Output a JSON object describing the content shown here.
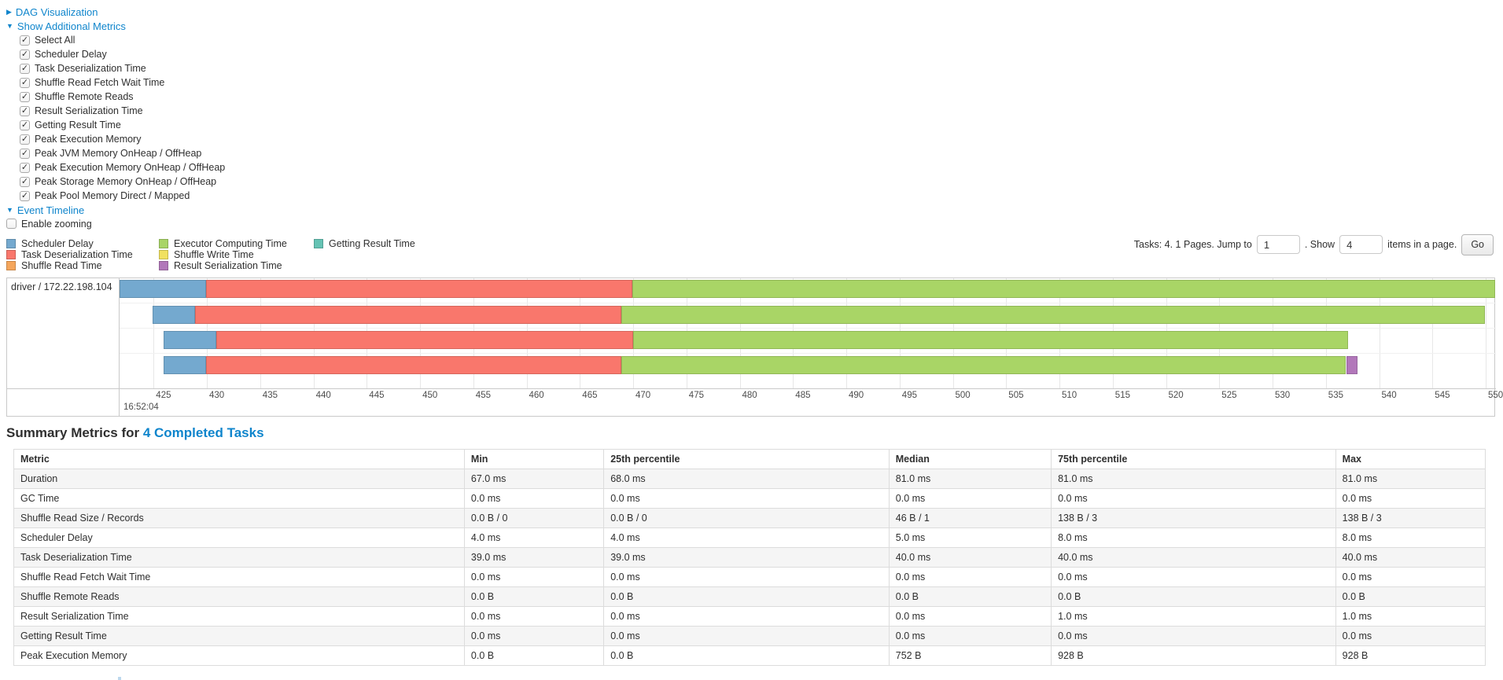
{
  "controls": {
    "dag": {
      "label": "DAG Visualization",
      "arrow": "▶"
    },
    "metrics_toggle": {
      "label": "Show Additional Metrics",
      "arrow": "▼"
    },
    "checkboxes": [
      {
        "label": "Select All",
        "checked": true
      },
      {
        "label": "Scheduler Delay",
        "checked": true
      },
      {
        "label": "Task Deserialization Time",
        "checked": true
      },
      {
        "label": "Shuffle Read Fetch Wait Time",
        "checked": true
      },
      {
        "label": "Shuffle Remote Reads",
        "checked": true
      },
      {
        "label": "Result Serialization Time",
        "checked": true
      },
      {
        "label": "Getting Result Time",
        "checked": true
      },
      {
        "label": "Peak Execution Memory",
        "checked": true
      },
      {
        "label": "Peak JVM Memory OnHeap / OffHeap",
        "checked": true
      },
      {
        "label": "Peak Execution Memory OnHeap / OffHeap",
        "checked": true
      },
      {
        "label": "Peak Storage Memory OnHeap / OffHeap",
        "checked": true
      },
      {
        "label": "Peak Pool Memory Direct / Mapped",
        "checked": true
      }
    ],
    "event_timeline": {
      "label": "Event Timeline",
      "arrow": "▼"
    },
    "enable_zooming": {
      "label": "Enable zooming",
      "checked": false
    }
  },
  "legend": {
    "columns": [
      [
        {
          "label": "Scheduler Delay",
          "color": "#74A9CF"
        },
        {
          "label": "Task Deserialization Time",
          "color": "#F9776C"
        },
        {
          "label": "Shuffle Read Time",
          "color": "#F5A65B"
        }
      ],
      [
        {
          "label": "Executor Computing Time",
          "color": "#A9D566"
        },
        {
          "label": "Shuffle Write Time",
          "color": "#F1E15F"
        },
        {
          "label": "Result Serialization Time",
          "color": "#B277BA"
        }
      ],
      [
        {
          "label": "Getting Result Time",
          "color": "#65C3B4"
        }
      ]
    ]
  },
  "pagination": {
    "prefix": "Tasks: 4. 1 Pages. Jump to",
    "jump_value": "1",
    "mid": ". Show",
    "show_value": "4",
    "suffix": "items in a page.",
    "go_label": "Go"
  },
  "chart_data": {
    "type": "timeline-gantt",
    "group_label": "driver / 172.22.198.104",
    "axis": {
      "tick_min": 425,
      "tick_max": 550,
      "tick_step": 5,
      "domain_min": 421.8,
      "domain_max": 551.0,
      "major_label": "16:52:04",
      "grid": true
    },
    "segment_colors": {
      "scheduler_delay": "#74A9CF",
      "task_deserialization": "#F9776C",
      "shuffle_read": "#F5A65B",
      "executor_computing": "#A9D566",
      "shuffle_write": "#F1E15F",
      "result_serialization": "#B277BA",
      "getting_result": "#65C3B4"
    },
    "tasks": [
      {
        "segments": [
          {
            "type": "scheduler_delay",
            "start": 421.8,
            "end": 429.9
          },
          {
            "type": "task_deserialization",
            "start": 429.9,
            "end": 469.9
          },
          {
            "type": "executor_computing",
            "start": 469.9,
            "end": 551.0
          }
        ]
      },
      {
        "segments": [
          {
            "type": "scheduler_delay",
            "start": 424.9,
            "end": 428.9
          },
          {
            "type": "task_deserialization",
            "start": 428.9,
            "end": 468.9
          },
          {
            "type": "executor_computing",
            "start": 468.9,
            "end": 549.9
          }
        ]
      },
      {
        "segments": [
          {
            "type": "scheduler_delay",
            "start": 425.9,
            "end": 430.9
          },
          {
            "type": "task_deserialization",
            "start": 430.9,
            "end": 470.0
          },
          {
            "type": "executor_computing",
            "start": 470.0,
            "end": 537.1
          }
        ]
      },
      {
        "segments": [
          {
            "type": "scheduler_delay",
            "start": 425.9,
            "end": 429.9
          },
          {
            "type": "task_deserialization",
            "start": 429.9,
            "end": 468.9
          },
          {
            "type": "executor_computing",
            "start": 468.9,
            "end": 536.9
          },
          {
            "type": "result_serialization",
            "start": 536.9,
            "end": 538.0
          }
        ]
      }
    ]
  },
  "summary": {
    "title_prefix": "Summary Metrics for ",
    "title_link": "4 Completed Tasks",
    "table": {
      "headers": [
        "Metric",
        "Min",
        "25th percentile",
        "Median",
        "75th percentile",
        "Max"
      ],
      "rows": [
        [
          "Duration",
          "67.0 ms",
          "68.0 ms",
          "81.0 ms",
          "81.0 ms",
          "81.0 ms"
        ],
        [
          "GC Time",
          "0.0 ms",
          "0.0 ms",
          "0.0 ms",
          "0.0 ms",
          "0.0 ms"
        ],
        [
          "Shuffle Read Size / Records",
          "0.0 B / 0",
          "0.0 B / 0",
          "46 B / 1",
          "138 B / 3",
          "138 B / 3"
        ],
        [
          "Scheduler Delay",
          "4.0 ms",
          "4.0 ms",
          "5.0 ms",
          "8.0 ms",
          "8.0 ms"
        ],
        [
          "Task Deserialization Time",
          "39.0 ms",
          "39.0 ms",
          "40.0 ms",
          "40.0 ms",
          "40.0 ms"
        ],
        [
          "Shuffle Read Fetch Wait Time",
          "0.0 ms",
          "0.0 ms",
          "0.0 ms",
          "0.0 ms",
          "0.0 ms"
        ],
        [
          "Shuffle Remote Reads",
          "0.0 B",
          "0.0 B",
          "0.0 B",
          "0.0 B",
          "0.0 B"
        ],
        [
          "Result Serialization Time",
          "0.0 ms",
          "0.0 ms",
          "0.0 ms",
          "1.0 ms",
          "1.0 ms"
        ],
        [
          "Getting Result Time",
          "0.0 ms",
          "0.0 ms",
          "0.0 ms",
          "0.0 ms",
          "0.0 ms"
        ],
        [
          "Peak Execution Memory",
          "0.0 B",
          "0.0 B",
          "752 B",
          "928 B",
          "928 B"
        ]
      ]
    }
  }
}
